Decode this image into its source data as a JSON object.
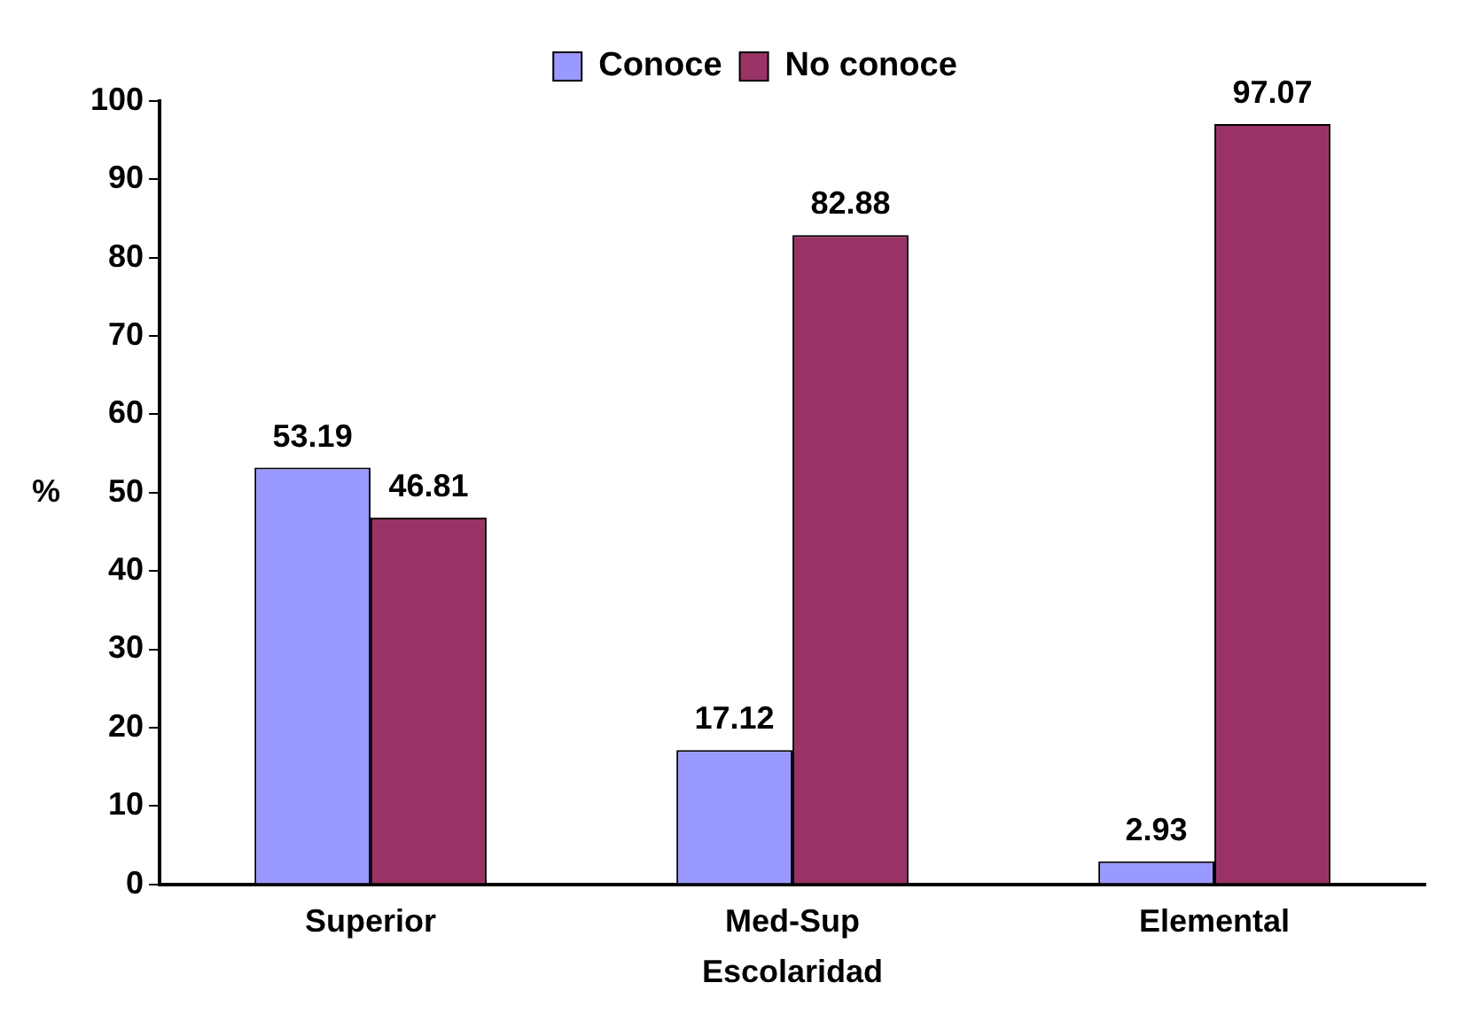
{
  "chart_data": {
    "type": "bar",
    "xlabel": "Escolaridad",
    "ylabel": "%",
    "categories": [
      "Superior",
      "Med-Sup",
      "Elemental"
    ],
    "series": [
      {
        "name": "Conoce",
        "color": "#9999ff",
        "values": [
          53.19,
          17.12,
          2.93
        ]
      },
      {
        "name": "No conoce",
        "color": "#993366",
        "values": [
          46.81,
          82.88,
          97.07
        ]
      }
    ],
    "ylim": [
      0,
      100
    ],
    "yticks": [
      0,
      10,
      20,
      30,
      40,
      50,
      60,
      70,
      80,
      90,
      100
    ],
    "grid": false,
    "legend": "top",
    "data_labels": true
  }
}
